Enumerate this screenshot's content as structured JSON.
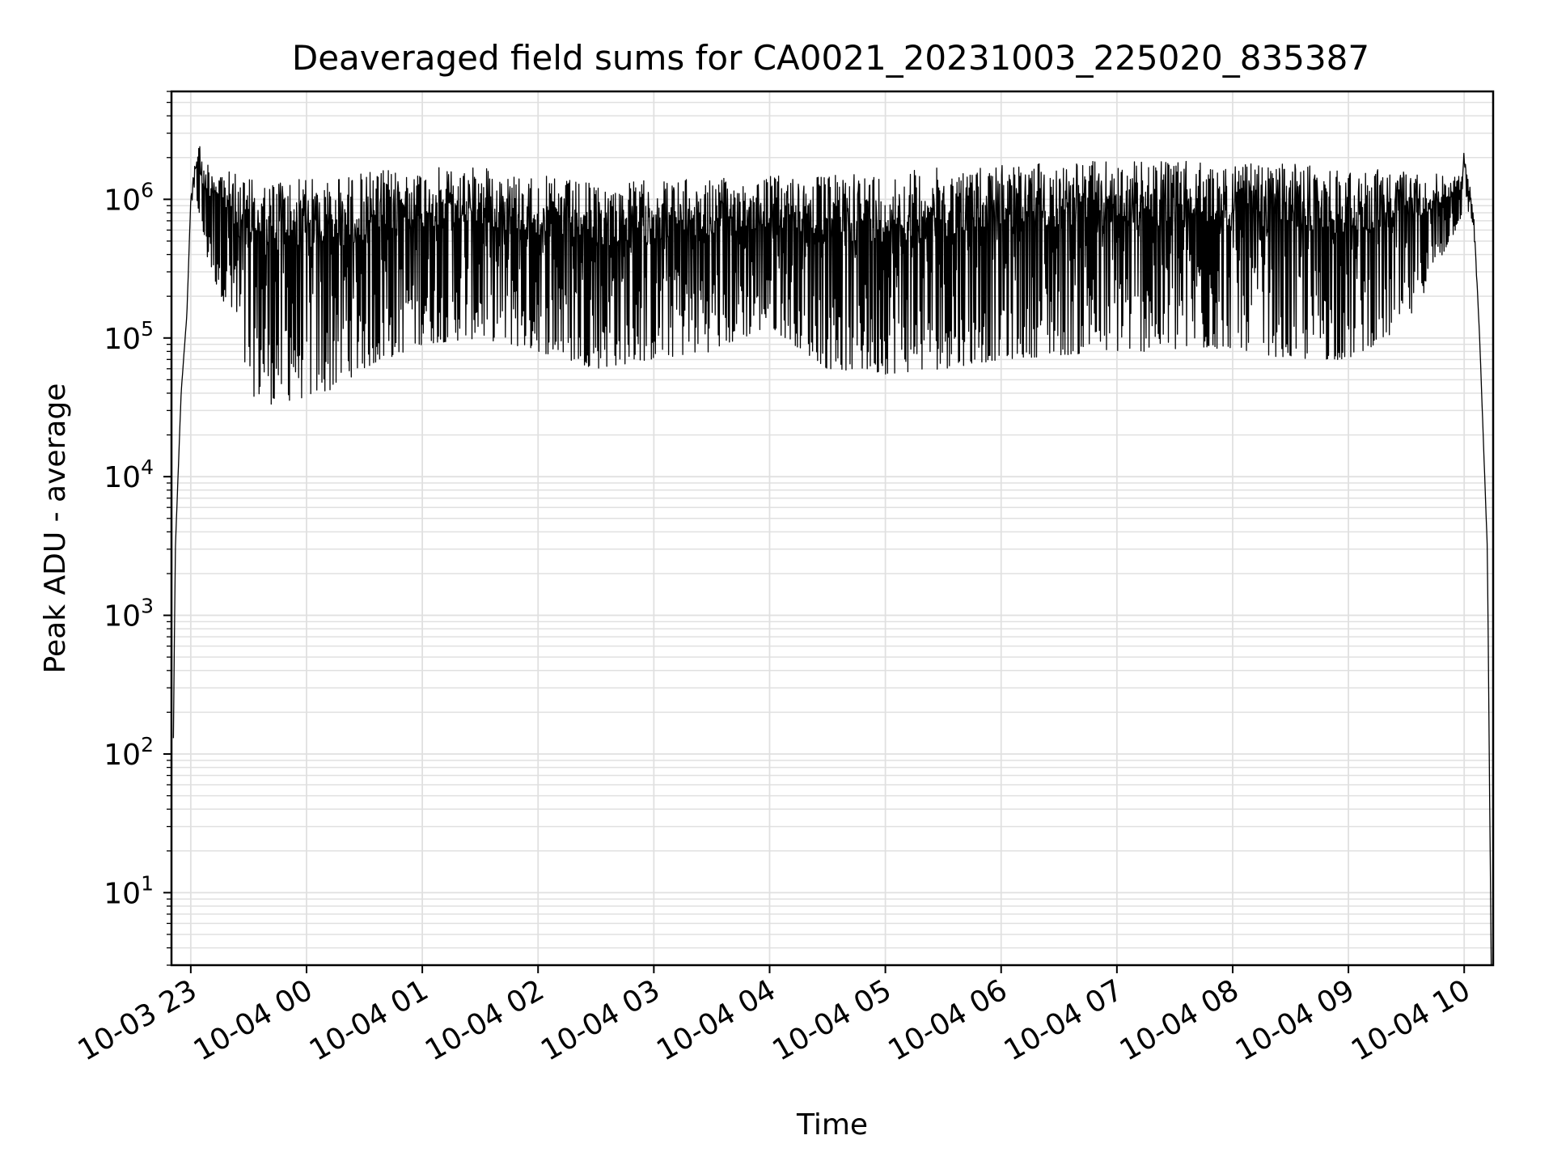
{
  "chart_data": {
    "type": "line",
    "title": "Deaveraged field sums for CA0021_20231003_225020_835387",
    "xlabel": "Time",
    "ylabel": "Peak ADU - average",
    "y_scale": "log",
    "ylim": [
      3,
      6000000
    ],
    "y_ticks": [
      {
        "value": 10,
        "base": "10",
        "exp": "1"
      },
      {
        "value": 100,
        "base": "10",
        "exp": "2"
      },
      {
        "value": 1000,
        "base": "10",
        "exp": "3"
      },
      {
        "value": 10000,
        "base": "10",
        "exp": "4"
      },
      {
        "value": 100000,
        "base": "10",
        "exp": "5"
      },
      {
        "value": 1000000,
        "base": "10",
        "exp": "6"
      }
    ],
    "xlim": [
      "2023-10-03 22:50",
      "2023-10-04 10:15"
    ],
    "x_ticks": [
      {
        "value": "2023-10-03 23:00",
        "label": "10-03 23"
      },
      {
        "value": "2023-10-04 00:00",
        "label": "10-04 00"
      },
      {
        "value": "2023-10-04 01:00",
        "label": "10-04 01"
      },
      {
        "value": "2023-10-04 02:00",
        "label": "10-04 02"
      },
      {
        "value": "2023-10-04 03:00",
        "label": "10-04 03"
      },
      {
        "value": "2023-10-04 04:00",
        "label": "10-04 04"
      },
      {
        "value": "2023-10-04 05:00",
        "label": "10-04 05"
      },
      {
        "value": "2023-10-04 06:00",
        "label": "10-04 06"
      },
      {
        "value": "2023-10-04 07:00",
        "label": "10-04 07"
      },
      {
        "value": "2023-10-04 08:00",
        "label": "10-04 08"
      },
      {
        "value": "2023-10-04 09:00",
        "label": "10-04 09"
      },
      {
        "value": "2023-10-04 10:00",
        "label": "10-04 10"
      }
    ],
    "grid": true,
    "line_color": "#000000",
    "grid_color": "#e0e0e0",
    "series": [
      {
        "x": [
          "2023-10-03 22:51",
          "2023-10-03 22:52",
          "2023-10-03 22:55",
          "2023-10-03 22:58",
          "2023-10-03 23:00",
          "2023-10-03 23:04",
          "2023-10-03 23:06",
          "2023-10-03 23:10",
          "2023-10-03 23:20",
          "2023-10-03 23:30",
          "2023-10-03 23:40",
          "2023-10-03 23:50",
          "2023-10-04 00:10",
          "2023-10-04 00:30",
          "2023-10-04 01:00",
          "2023-10-04 01:30",
          "2023-10-04 02:00",
          "2023-10-04 02:30",
          "2023-10-04 03:00",
          "2023-10-04 03:30",
          "2023-10-04 04:00",
          "2023-10-04 04:30",
          "2023-10-04 05:00",
          "2023-10-04 05:30",
          "2023-10-04 06:00",
          "2023-10-04 06:30",
          "2023-10-04 07:00",
          "2023-10-04 07:30",
          "2023-10-04 08:00",
          "2023-10-04 08:30",
          "2023-10-04 09:00",
          "2023-10-04 09:30",
          "2023-10-04 09:58",
          "2023-10-04 10:00",
          "2023-10-04 10:05",
          "2023-10-04 10:08",
          "2023-10-04 10:12",
          "2023-10-04 10:14"
        ],
        "y_upper": [
          130,
          3000,
          40000,
          150000,
          1000000,
          3200000,
          1800000,
          2000000,
          1600000,
          1400000,
          1400000,
          1500000,
          1400000,
          1600000,
          1700000,
          1700000,
          1500000,
          1300000,
          1400000,
          1400000,
          1500000,
          1500000,
          1600000,
          1700000,
          1800000,
          1900000,
          1900000,
          1900000,
          1800000,
          1800000,
          1700000,
          1600000,
          1500000,
          2300000,
          800000,
          100000,
          3000,
          3
        ],
        "y_lower": [
          130,
          3000,
          40000,
          150000,
          1000000,
          800000,
          500000,
          300000,
          150000,
          40000,
          33000,
          35000,
          40000,
          60000,
          90000,
          100000,
          80000,
          60000,
          70000,
          80000,
          120000,
          60000,
          55000,
          60000,
          70000,
          75000,
          80000,
          80000,
          85000,
          70000,
          70000,
          120000,
          700000,
          1000000,
          600000,
          100000,
          3000,
          3
        ]
      }
    ]
  }
}
